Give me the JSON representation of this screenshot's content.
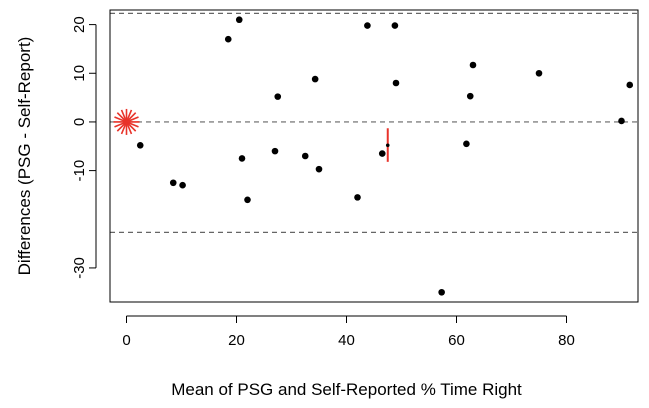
{
  "chart_data": {
    "type": "scatter",
    "title": "",
    "xlabel": "Mean of PSG and Self-Reported % Time Right",
    "ylabel": "Differences (PSG - Self-Report)",
    "xlim": [
      -3,
      93
    ],
    "ylim": [
      -37,
      23
    ],
    "x_ticks": [
      0,
      20,
      40,
      60,
      80
    ],
    "y_ticks": [
      20,
      10,
      0,
      -10,
      -30
    ],
    "reference_lines": [
      {
        "name": "upper limit",
        "y": 22.3,
        "style": "dashed"
      },
      {
        "name": "mean difference",
        "y": 0,
        "style": "dashed"
      },
      {
        "name": "lower limit",
        "y": -22.7,
        "style": "dashed"
      }
    ],
    "points": [
      {
        "x": 2.5,
        "y": -4.8
      },
      {
        "x": 8.5,
        "y": -12.5
      },
      {
        "x": 10.2,
        "y": -13.0
      },
      {
        "x": 18.5,
        "y": 17.0
      },
      {
        "x": 20.5,
        "y": 21.0
      },
      {
        "x": 21.0,
        "y": -7.5
      },
      {
        "x": 22.0,
        "y": -16.0
      },
      {
        "x": 27.0,
        "y": -6.0
      },
      {
        "x": 27.5,
        "y": 5.2
      },
      {
        "x": 32.5,
        "y": -7.0
      },
      {
        "x": 34.3,
        "y": 8.8
      },
      {
        "x": 35.0,
        "y": -9.7
      },
      {
        "x": 42.0,
        "y": -15.5
      },
      {
        "x": 43.8,
        "y": 19.8
      },
      {
        "x": 46.5,
        "y": -6.5
      },
      {
        "x": 48.8,
        "y": 19.8
      },
      {
        "x": 49.0,
        "y": 8.0
      },
      {
        "x": 57.3,
        "y": -35.0
      },
      {
        "x": 61.8,
        "y": -4.5
      },
      {
        "x": 62.5,
        "y": 5.3
      },
      {
        "x": 63.0,
        "y": 11.7
      },
      {
        "x": 75.0,
        "y": 10.0
      },
      {
        "x": 90.0,
        "y": 0.2
      },
      {
        "x": 91.5,
        "y": 7.6
      }
    ],
    "highlight_star": {
      "x": 0,
      "y": 0,
      "color": "#e8332a"
    },
    "highlight_errorbar": {
      "x": 47.5,
      "y": -4.8,
      "y_low": -8.2,
      "y_high": -1.3,
      "color": "#e8332a"
    },
    "colors": {
      "points": "#000000",
      "highlight": "#e8332a",
      "reference_lines": "#666666"
    }
  }
}
